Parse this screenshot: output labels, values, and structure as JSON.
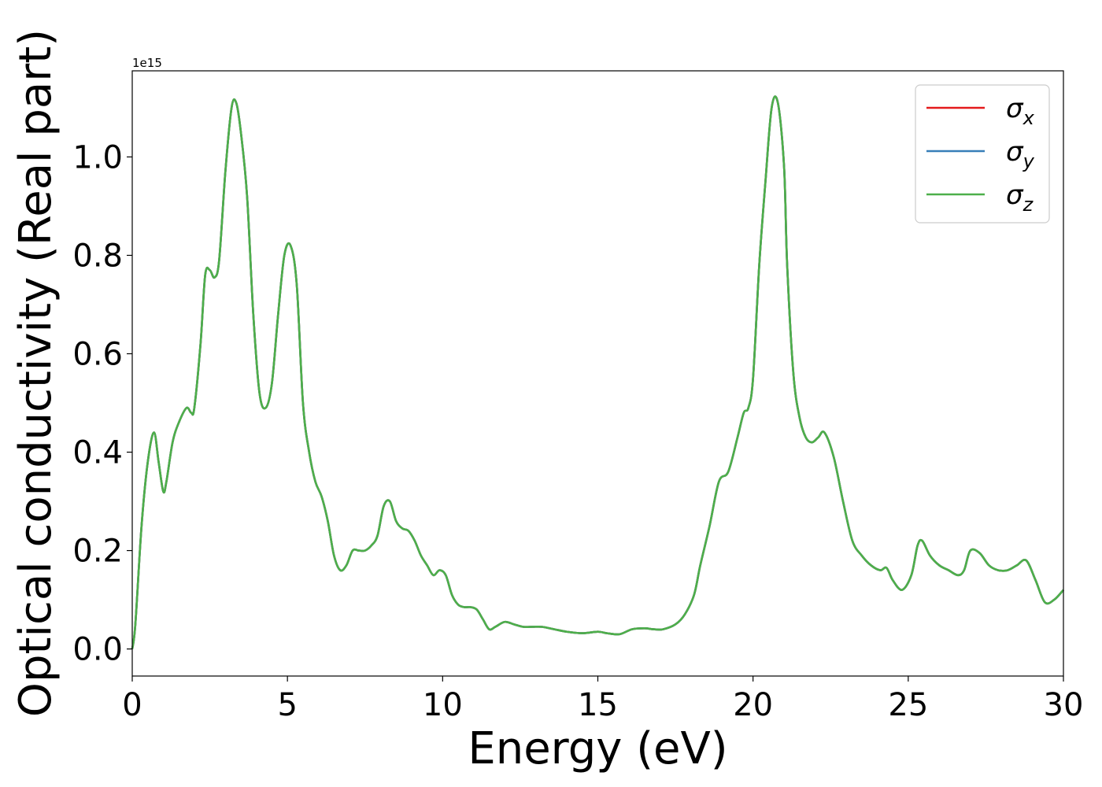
{
  "chart_data": {
    "type": "line",
    "title": "",
    "xlabel": "Energy (eV)",
    "ylabel": "Optical conductivity (Real part)",
    "y_offset_label": "1e15",
    "xlim": [
      0,
      30
    ],
    "ylim": [
      -0.055,
      1.175
    ],
    "xticks": [
      0,
      5,
      10,
      15,
      20,
      25,
      30
    ],
    "xtick_labels": [
      "0",
      "5",
      "10",
      "15",
      "20",
      "25",
      "30"
    ],
    "yticks": [
      0.0,
      0.2,
      0.4,
      0.6,
      0.8,
      1.0
    ],
    "ytick_labels": [
      "0.0",
      "0.2",
      "0.4",
      "0.6",
      "0.8",
      "1.0"
    ],
    "grid": false,
    "legend_position": "top-right",
    "x": [
      0,
      0.1,
      0.3,
      0.5,
      0.7,
      0.85,
      1.0,
      1.1,
      1.3,
      1.5,
      1.75,
      1.9,
      2.0,
      2.2,
      2.35,
      2.5,
      2.65,
      2.8,
      3.0,
      3.2,
      3.35,
      3.5,
      3.7,
      3.9,
      4.1,
      4.3,
      4.5,
      4.7,
      4.9,
      5.1,
      5.3,
      5.5,
      5.7,
      5.9,
      6.1,
      6.3,
      6.5,
      6.7,
      6.9,
      7.1,
      7.3,
      7.5,
      7.7,
      7.9,
      8.1,
      8.3,
      8.5,
      8.7,
      8.9,
      9.1,
      9.3,
      9.5,
      9.7,
      9.9,
      10.1,
      10.3,
      10.5,
      10.7,
      10.9,
      11.1,
      11.3,
      11.5,
      11.7,
      12.0,
      12.3,
      12.6,
      12.9,
      13.2,
      13.6,
      14.0,
      14.5,
      15.0,
      15.3,
      15.7,
      16.1,
      16.5,
      16.8,
      17.1,
      17.5,
      17.8,
      18.1,
      18.3,
      18.6,
      18.9,
      19.2,
      19.5,
      19.7,
      19.85,
      20.0,
      20.2,
      20.4,
      20.6,
      20.8,
      21.0,
      21.1,
      21.3,
      21.5,
      21.7,
      21.9,
      22.1,
      22.3,
      22.6,
      22.9,
      23.2,
      23.5,
      23.8,
      24.1,
      24.3,
      24.5,
      24.8,
      25.1,
      25.3,
      25.45,
      25.7,
      26.0,
      26.3,
      26.6,
      26.8,
      27.0,
      27.3,
      27.6,
      27.9,
      28.2,
      28.5,
      28.8,
      29.1,
      29.4,
      29.7,
      30.0
    ],
    "series": [
      {
        "name": "σx",
        "label_base": "σ",
        "label_sub": "x",
        "color": "#e41a1c",
        "y": [
          0.0,
          0.05,
          0.25,
          0.38,
          0.44,
          0.38,
          0.32,
          0.34,
          0.42,
          0.46,
          0.49,
          0.48,
          0.49,
          0.62,
          0.76,
          0.77,
          0.755,
          0.79,
          0.97,
          1.1,
          1.11,
          1.05,
          0.92,
          0.68,
          0.52,
          0.49,
          0.54,
          0.68,
          0.8,
          0.82,
          0.74,
          0.5,
          0.4,
          0.34,
          0.31,
          0.26,
          0.19,
          0.16,
          0.17,
          0.2,
          0.2,
          0.2,
          0.21,
          0.23,
          0.29,
          0.3,
          0.26,
          0.245,
          0.24,
          0.22,
          0.19,
          0.17,
          0.15,
          0.16,
          0.15,
          0.11,
          0.09,
          0.085,
          0.085,
          0.08,
          0.06,
          0.04,
          0.045,
          0.055,
          0.05,
          0.045,
          0.045,
          0.045,
          0.04,
          0.035,
          0.032,
          0.035,
          0.032,
          0.03,
          0.04,
          0.042,
          0.04,
          0.04,
          0.05,
          0.07,
          0.11,
          0.17,
          0.25,
          0.34,
          0.36,
          0.43,
          0.48,
          0.49,
          0.55,
          0.78,
          0.95,
          1.1,
          1.11,
          0.98,
          0.78,
          0.56,
          0.47,
          0.43,
          0.42,
          0.43,
          0.44,
          0.39,
          0.3,
          0.22,
          0.19,
          0.17,
          0.16,
          0.165,
          0.14,
          0.12,
          0.15,
          0.21,
          0.22,
          0.19,
          0.17,
          0.16,
          0.15,
          0.16,
          0.2,
          0.195,
          0.17,
          0.16,
          0.16,
          0.17,
          0.18,
          0.14,
          0.095,
          0.1,
          0.12
        ]
      },
      {
        "name": "σy",
        "label_base": "σ",
        "label_sub": "y",
        "color": "#377eb8",
        "y": [
          0.0,
          0.05,
          0.25,
          0.38,
          0.44,
          0.38,
          0.32,
          0.34,
          0.42,
          0.46,
          0.49,
          0.48,
          0.49,
          0.62,
          0.76,
          0.77,
          0.755,
          0.79,
          0.97,
          1.1,
          1.11,
          1.05,
          0.92,
          0.68,
          0.52,
          0.49,
          0.54,
          0.68,
          0.8,
          0.82,
          0.74,
          0.5,
          0.4,
          0.34,
          0.31,
          0.26,
          0.19,
          0.16,
          0.17,
          0.2,
          0.2,
          0.2,
          0.21,
          0.23,
          0.29,
          0.3,
          0.26,
          0.245,
          0.24,
          0.22,
          0.19,
          0.17,
          0.15,
          0.16,
          0.15,
          0.11,
          0.09,
          0.085,
          0.085,
          0.08,
          0.06,
          0.04,
          0.045,
          0.055,
          0.05,
          0.045,
          0.045,
          0.045,
          0.04,
          0.035,
          0.032,
          0.035,
          0.032,
          0.03,
          0.04,
          0.042,
          0.04,
          0.04,
          0.05,
          0.07,
          0.11,
          0.17,
          0.25,
          0.34,
          0.36,
          0.43,
          0.48,
          0.49,
          0.55,
          0.78,
          0.95,
          1.1,
          1.11,
          0.98,
          0.78,
          0.56,
          0.47,
          0.43,
          0.42,
          0.43,
          0.44,
          0.39,
          0.3,
          0.22,
          0.19,
          0.17,
          0.16,
          0.165,
          0.14,
          0.12,
          0.15,
          0.21,
          0.22,
          0.19,
          0.17,
          0.16,
          0.15,
          0.16,
          0.2,
          0.195,
          0.17,
          0.16,
          0.16,
          0.17,
          0.18,
          0.14,
          0.095,
          0.1,
          0.12
        ]
      },
      {
        "name": "σz",
        "label_base": "σ",
        "label_sub": "z",
        "color": "#4daf4a",
        "y": [
          0.0,
          0.05,
          0.25,
          0.38,
          0.44,
          0.38,
          0.32,
          0.34,
          0.42,
          0.46,
          0.49,
          0.48,
          0.49,
          0.62,
          0.76,
          0.77,
          0.755,
          0.79,
          0.97,
          1.1,
          1.11,
          1.05,
          0.92,
          0.68,
          0.52,
          0.49,
          0.54,
          0.68,
          0.8,
          0.82,
          0.74,
          0.5,
          0.4,
          0.34,
          0.31,
          0.26,
          0.19,
          0.16,
          0.17,
          0.2,
          0.2,
          0.2,
          0.21,
          0.23,
          0.29,
          0.3,
          0.26,
          0.245,
          0.24,
          0.22,
          0.19,
          0.17,
          0.15,
          0.16,
          0.15,
          0.11,
          0.09,
          0.085,
          0.085,
          0.08,
          0.06,
          0.04,
          0.045,
          0.055,
          0.05,
          0.045,
          0.045,
          0.045,
          0.04,
          0.035,
          0.032,
          0.035,
          0.032,
          0.03,
          0.04,
          0.042,
          0.04,
          0.04,
          0.05,
          0.07,
          0.11,
          0.17,
          0.25,
          0.34,
          0.36,
          0.43,
          0.48,
          0.49,
          0.55,
          0.78,
          0.95,
          1.1,
          1.11,
          0.98,
          0.78,
          0.56,
          0.47,
          0.43,
          0.42,
          0.43,
          0.44,
          0.39,
          0.3,
          0.22,
          0.19,
          0.17,
          0.16,
          0.165,
          0.14,
          0.12,
          0.15,
          0.21,
          0.22,
          0.19,
          0.17,
          0.16,
          0.15,
          0.16,
          0.2,
          0.195,
          0.17,
          0.16,
          0.16,
          0.17,
          0.18,
          0.14,
          0.095,
          0.1,
          0.12
        ]
      }
    ]
  }
}
